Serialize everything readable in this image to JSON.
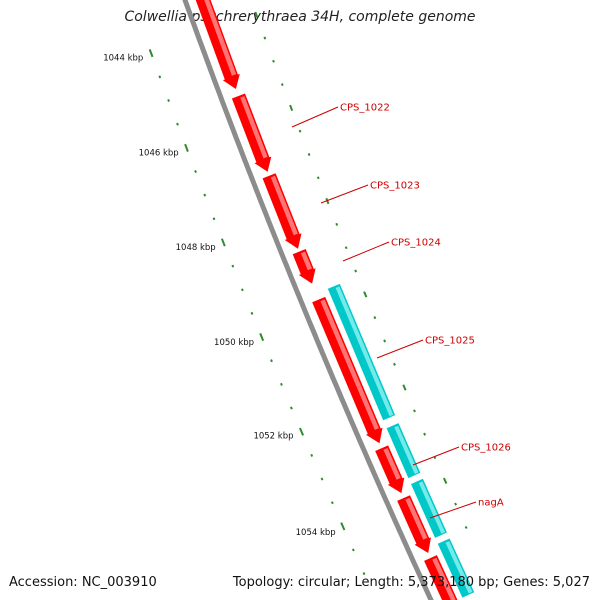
{
  "title": "Colwellia psychrerythraea 34H, complete genome",
  "accession": "Accession: NC_003910",
  "topology_summary": "Topology: circular; Length: 5,373,180 bp; Genes: 5,027",
  "colors": {
    "backbone": "#8c8c8c",
    "gene_forward": "#ff0000",
    "gene_forward_highlight": "#ff8a8a",
    "gene_reverse": "#00c8c8",
    "gene_reverse_highlight": "#88f0f0",
    "ticks": "#2e8b2e",
    "gene_label": "#cc0000"
  },
  "scale_ticks": [
    {
      "label": "1044 kbp"
    },
    {
      "label": "1046 kbp"
    },
    {
      "label": "1048 kbp"
    },
    {
      "label": "1050 kbp"
    },
    {
      "label": "1052 kbp"
    },
    {
      "label": "1054 kbp"
    }
  ],
  "genes": [
    {
      "label": "CPS_1022",
      "strand": "forward"
    },
    {
      "label": "CPS_1023",
      "strand": "forward"
    },
    {
      "label": "CPS_1024",
      "strand": "forward"
    },
    {
      "label": "CPS_1025",
      "strand": "forward"
    },
    {
      "label": "CPS_1026",
      "strand": "forward"
    },
    {
      "label": "nagA",
      "strand": "forward"
    }
  ]
}
